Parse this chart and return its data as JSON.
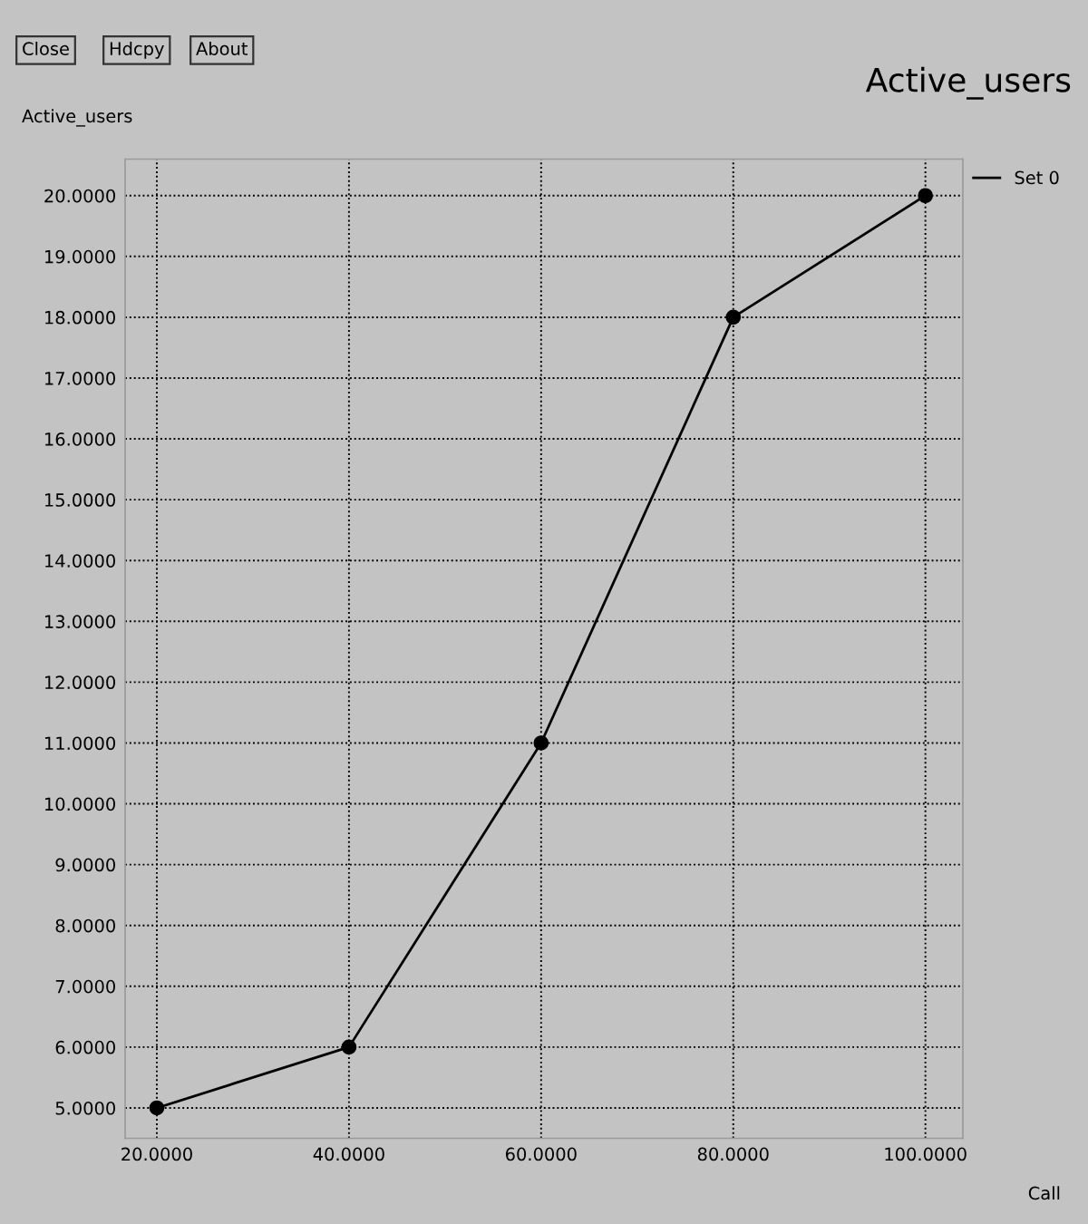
{
  "chart_data": {
    "type": "line",
    "title": "Active_users",
    "ylabel": "Active_users",
    "xlabel": "Call",
    "annotations": [
      "Close",
      "Hdcpy",
      "About"
    ],
    "x": [
      20,
      40,
      60,
      80,
      100
    ],
    "series": [
      {
        "name": "Set 0",
        "color": "#000000",
        "values": [
          5,
          6,
          11,
          18,
          20
        ]
      }
    ],
    "xlim": [
      16.7,
      103.9
    ],
    "ylim": [
      4.5,
      20.6
    ],
    "xticks": [
      {
        "value": 20,
        "label": "20.0000"
      },
      {
        "value": 40,
        "label": "40.0000"
      },
      {
        "value": 60,
        "label": "60.0000"
      },
      {
        "value": 80,
        "label": "80.0000"
      },
      {
        "value": 100,
        "label": "100.0000"
      }
    ],
    "yticks": [
      {
        "value": 5,
        "label": "5.0000"
      },
      {
        "value": 6,
        "label": "6.0000"
      },
      {
        "value": 7,
        "label": "7.0000"
      },
      {
        "value": 8,
        "label": "8.0000"
      },
      {
        "value": 9,
        "label": "9.0000"
      },
      {
        "value": 10,
        "label": "10.0000"
      },
      {
        "value": 11,
        "label": "11.0000"
      },
      {
        "value": 12,
        "label": "12.0000"
      },
      {
        "value": 13,
        "label": "13.0000"
      },
      {
        "value": 14,
        "label": "14.0000"
      },
      {
        "value": 15,
        "label": "15.0000"
      },
      {
        "value": 16,
        "label": "16.0000"
      },
      {
        "value": 17,
        "label": "17.0000"
      },
      {
        "value": 18,
        "label": "18.0000"
      },
      {
        "value": 19,
        "label": "19.0000"
      },
      {
        "value": 20,
        "label": "20.0000"
      }
    ],
    "grid": true,
    "legend": "top right",
    "marker": "circle",
    "line_style": "solid"
  }
}
